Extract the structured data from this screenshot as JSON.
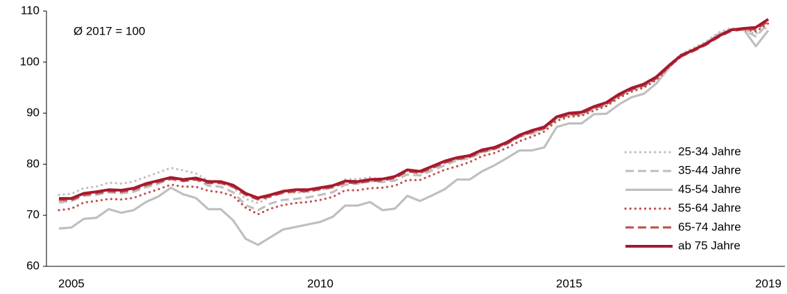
{
  "chart_data": {
    "type": "line",
    "annotation": "Ø 2017 = 100",
    "categories": [
      null,
      "2005",
      null,
      null,
      null,
      null,
      null,
      null,
      null,
      null,
      null,
      null,
      null,
      null,
      null,
      null,
      null,
      null,
      null,
      null,
      null,
      "2010",
      null,
      null,
      null,
      null,
      null,
      null,
      null,
      null,
      null,
      null,
      null,
      null,
      null,
      null,
      null,
      null,
      null,
      null,
      null,
      "2015",
      null,
      null,
      null,
      null,
      null,
      null,
      null,
      null,
      null,
      null,
      null,
      null,
      null,
      null,
      null,
      "2019"
    ],
    "ylim": [
      60,
      110
    ],
    "yticks": [
      60,
      70,
      80,
      90,
      100,
      110
    ],
    "series": [
      {
        "name": "25-34 Jahre",
        "color": "#bfbfbf",
        "style": "dotted",
        "values": [
          74.0,
          74.2,
          75.3,
          75.6,
          76.4,
          76.2,
          76.6,
          77.5,
          78.4,
          79.3,
          78.8,
          78.2,
          76.8,
          76.6,
          75.4,
          73.2,
          72.4,
          73.6,
          74.5,
          74.4,
          74.6,
          75.0,
          75.4,
          77.0,
          77.1,
          77.4,
          77.0,
          77.4,
          78.7,
          78.2,
          79.2,
          80.2,
          81.2,
          81.6,
          82.7,
          83.2,
          84.3,
          85.7,
          86.1,
          87.0,
          89.0,
          89.7,
          89.9,
          91.0,
          91.8,
          93.4,
          94.6,
          95.4,
          97.0,
          99.4,
          101.6,
          102.8,
          104.0,
          105.8,
          106.7,
          106.3,
          105.5,
          107.0
        ]
      },
      {
        "name": "35-44 Jahre",
        "color": "#bfbfbf",
        "style": "dashed",
        "values": [
          72.5,
          72.8,
          73.8,
          74.0,
          74.5,
          74.3,
          74.6,
          75.5,
          76.2,
          77.3,
          77.0,
          77.0,
          75.8,
          75.6,
          74.5,
          72.0,
          71.0,
          72.3,
          73.0,
          73.2,
          73.5,
          74.0,
          74.5,
          76.0,
          76.2,
          76.7,
          76.5,
          76.8,
          78.0,
          77.8,
          78.8,
          79.8,
          80.8,
          81.2,
          82.3,
          83.0,
          84.0,
          85.4,
          86.0,
          87.0,
          89.0,
          89.6,
          89.8,
          91.0,
          91.6,
          93.3,
          94.6,
          95.3,
          96.8,
          99.2,
          101.3,
          102.4,
          103.8,
          105.3,
          106.4,
          106.4,
          105.0,
          107.6
        ]
      },
      {
        "name": "45-54 Jahre",
        "color": "#bfbfbf",
        "style": "solid",
        "values": [
          67.4,
          67.6,
          69.3,
          69.5,
          71.2,
          70.5,
          71.0,
          72.6,
          73.7,
          75.4,
          74.1,
          73.4,
          71.2,
          71.2,
          69.0,
          65.4,
          64.2,
          65.7,
          67.2,
          67.7,
          68.2,
          68.7,
          69.7,
          71.9,
          71.9,
          72.6,
          71.0,
          71.3,
          73.8,
          72.8,
          73.9,
          75.1,
          77.0,
          77.0,
          78.6,
          79.8,
          81.2,
          82.7,
          82.7,
          83.3,
          87.3,
          88.0,
          88.0,
          89.8,
          89.9,
          91.7,
          93.1,
          93.8,
          95.8,
          98.8,
          101.5,
          102.4,
          103.8,
          105.5,
          106.3,
          106.5,
          103.1,
          106.2
        ]
      },
      {
        "name": "55-64 Jahre",
        "color": "#c0504d",
        "style": "dotted",
        "values": [
          71.0,
          71.3,
          72.5,
          72.8,
          73.2,
          73.1,
          73.4,
          74.3,
          75.1,
          76.0,
          75.6,
          75.6,
          74.8,
          74.5,
          73.8,
          71.5,
          70.2,
          71.3,
          72.0,
          72.4,
          72.6,
          73.0,
          73.6,
          74.9,
          74.9,
          75.3,
          75.4,
          75.8,
          76.9,
          76.9,
          77.9,
          78.9,
          79.6,
          80.4,
          81.6,
          82.2,
          83.2,
          84.5,
          85.4,
          86.4,
          88.5,
          89.3,
          89.5,
          90.5,
          91.4,
          93.0,
          94.2,
          95.0,
          96.5,
          99.0,
          101.1,
          102.3,
          103.5,
          105.0,
          106.3,
          106.4,
          106.0,
          107.6
        ]
      },
      {
        "name": "65-74 Jahre",
        "color": "#c0504d",
        "style": "dashed",
        "values": [
          73.0,
          73.0,
          74.0,
          74.3,
          74.7,
          74.6,
          75.0,
          75.9,
          76.5,
          77.1,
          76.7,
          77.0,
          76.3,
          76.3,
          75.6,
          74.0,
          73.1,
          73.7,
          74.4,
          74.7,
          74.7,
          75.1,
          75.5,
          76.4,
          76.3,
          76.7,
          76.8,
          77.3,
          78.6,
          78.3,
          79.3,
          80.3,
          81.0,
          81.4,
          82.5,
          83.0,
          84.0,
          85.4,
          86.3,
          87.0,
          89.0,
          89.7,
          89.9,
          91.0,
          91.8,
          93.4,
          94.6,
          95.4,
          96.8,
          99.1,
          101.1,
          102.2,
          103.4,
          104.9,
          106.1,
          106.4,
          106.4,
          108.0
        ]
      },
      {
        "name": "ab 75 Jahre",
        "color": "#a6192e",
        "style": "solid",
        "values": [
          73.3,
          73.3,
          74.3,
          74.6,
          75.0,
          74.9,
          75.3,
          76.2,
          76.8,
          77.4,
          77.0,
          77.3,
          76.6,
          76.6,
          75.9,
          74.3,
          73.4,
          74.0,
          74.7,
          75.0,
          75.0,
          75.4,
          75.8,
          76.7,
          76.6,
          77.0,
          77.1,
          77.6,
          78.9,
          78.6,
          79.6,
          80.6,
          81.3,
          81.7,
          82.8,
          83.3,
          84.3,
          85.7,
          86.6,
          87.3,
          89.3,
          90.0,
          90.2,
          91.3,
          92.1,
          93.7,
          94.9,
          95.7,
          97.1,
          99.3,
          101.3,
          102.4,
          103.6,
          105.1,
          106.3,
          106.6,
          106.8,
          108.4
        ]
      }
    ]
  }
}
